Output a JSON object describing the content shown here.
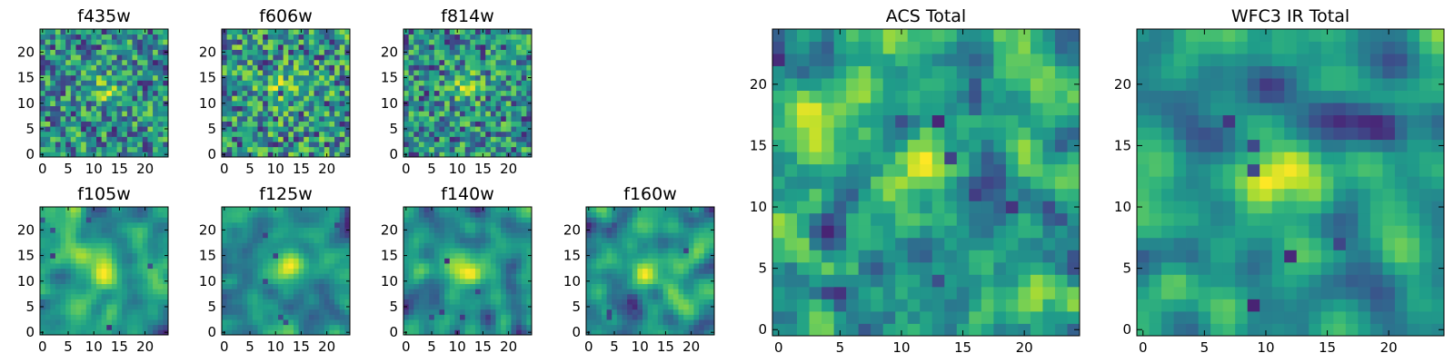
{
  "chart_data": {
    "type": "heatmap",
    "colormap": "viridis",
    "image_size": [
      25,
      25
    ],
    "panels": [
      {
        "id": "f435w",
        "title": "f435w",
        "xticks": [
          0,
          5,
          10,
          15,
          20
        ],
        "yticks": [
          0,
          5,
          10,
          15,
          20
        ],
        "xlim": [
          -0.5,
          24.5
        ],
        "ylim": [
          -0.5,
          24.5
        ],
        "noise": "fine",
        "peak": [
          12,
          13
        ],
        "seed": 11
      },
      {
        "id": "f606w",
        "title": "f606w",
        "xticks": [
          0,
          5,
          10,
          15,
          20
        ],
        "yticks": [
          0,
          5,
          10,
          15,
          20
        ],
        "xlim": [
          -0.5,
          24.5
        ],
        "ylim": [
          -0.5,
          24.5
        ],
        "noise": "fine",
        "peak": [
          12,
          13
        ],
        "seed": 23
      },
      {
        "id": "f814w",
        "title": "f814w",
        "xticks": [
          0,
          5,
          10,
          15,
          20
        ],
        "yticks": [
          0,
          5,
          10,
          15,
          20
        ],
        "xlim": [
          -0.5,
          24.5
        ],
        "ylim": [
          -0.5,
          24.5
        ],
        "noise": "fine",
        "peak": [
          12,
          13
        ],
        "seed": 37
      },
      {
        "id": "f105w",
        "title": "f105w",
        "xticks": [
          0,
          5,
          10,
          15,
          20
        ],
        "yticks": [
          0,
          5,
          10,
          15,
          20
        ],
        "xlim": [
          -0.5,
          24.5
        ],
        "ylim": [
          -0.5,
          24.5
        ],
        "noise": "smooth",
        "peak": [
          12,
          12
        ],
        "seed": 41
      },
      {
        "id": "f125w",
        "title": "f125w",
        "xticks": [
          0,
          5,
          10,
          15,
          20
        ],
        "yticks": [
          0,
          5,
          10,
          15,
          20
        ],
        "xlim": [
          -0.5,
          24.5
        ],
        "ylim": [
          -0.5,
          24.5
        ],
        "noise": "smooth",
        "peak": [
          13,
          13
        ],
        "seed": 53
      },
      {
        "id": "f140w",
        "title": "f140w",
        "xticks": [
          0,
          5,
          10,
          15,
          20
        ],
        "yticks": [
          0,
          5,
          10,
          15,
          20
        ],
        "xlim": [
          -0.5,
          24.5
        ],
        "ylim": [
          -0.5,
          24.5
        ],
        "noise": "smooth",
        "peak": [
          12,
          13
        ],
        "seed": 67
      },
      {
        "id": "f160w",
        "title": "f160w",
        "xticks": [
          0,
          5,
          10,
          15,
          20
        ],
        "yticks": [
          0,
          5,
          10,
          15,
          20
        ],
        "xlim": [
          -0.5,
          24.5
        ],
        "ylim": [
          -0.5,
          24.5
        ],
        "noise": "smooth",
        "peak": [
          12,
          12
        ],
        "seed": 79
      },
      {
        "id": "acs-total",
        "title": "ACS Total",
        "xticks": [
          0,
          5,
          10,
          15,
          20
        ],
        "yticks": [
          0,
          5,
          10,
          15,
          20
        ],
        "xlim": [
          -0.5,
          24.5
        ],
        "ylim": [
          -0.5,
          24.5
        ],
        "noise": "medium",
        "peak": [
          12,
          13
        ],
        "seed": 83
      },
      {
        "id": "wfc3-ir-total",
        "title": "WFC3 IR Total",
        "xticks": [
          0,
          5,
          10,
          15,
          20
        ],
        "yticks": [
          0,
          5,
          10,
          15,
          20
        ],
        "xlim": [
          -0.5,
          24.5
        ],
        "ylim": [
          -0.5,
          24.5
        ],
        "noise": "smooth",
        "peak": [
          12,
          13
        ],
        "seed": 97
      }
    ]
  }
}
